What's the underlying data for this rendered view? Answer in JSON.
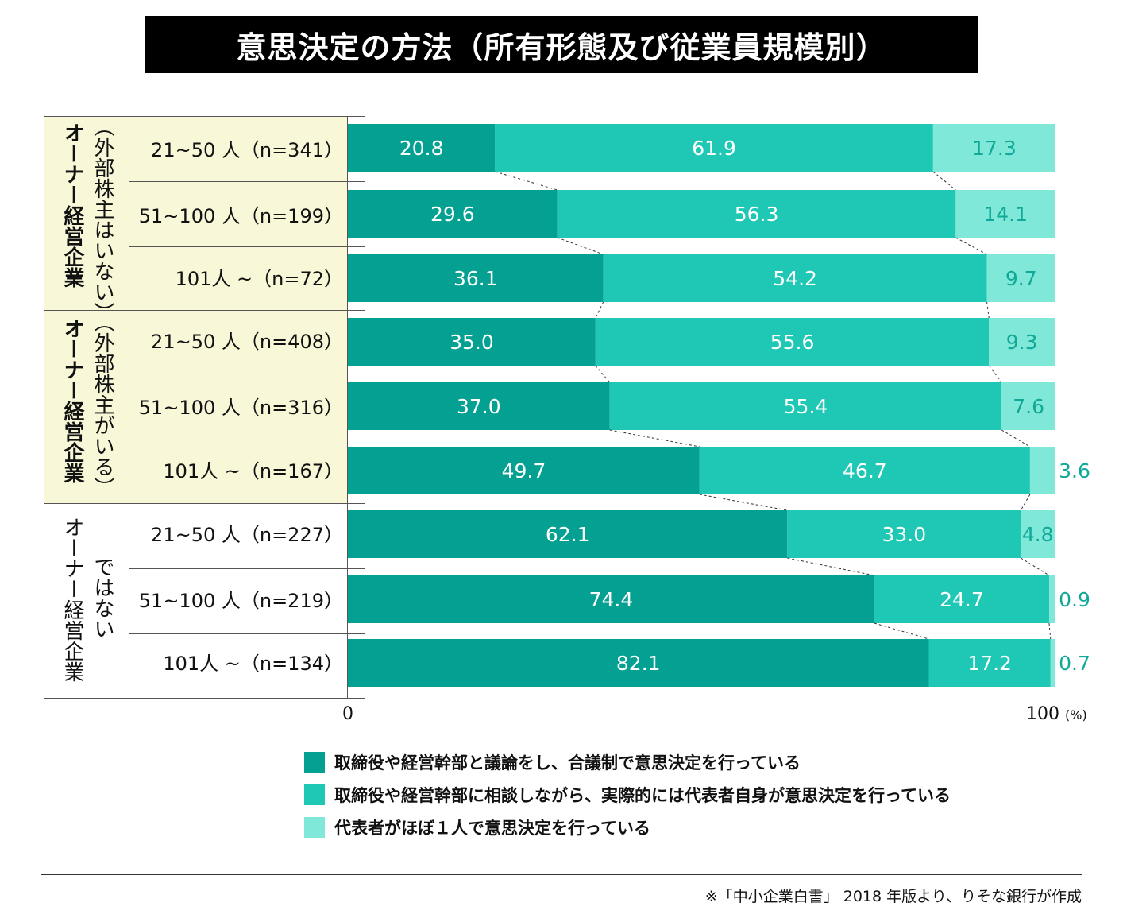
{
  "title": "意思決定の方法（所有形態及び従業員規模別）",
  "colors": {
    "series1": "#04a091",
    "series2": "#1ec8b4",
    "series3": "#80e8d8",
    "group_bg": "#f8f7d7"
  },
  "groups": [
    {
      "label": "オーナー経営企業",
      "sublabel": "（外部株主はいない）"
    },
    {
      "label": "オーナー経営企業",
      "sublabel": "（外部株主がいる）"
    },
    {
      "label": "オーナー経営企業",
      "sublabel": "ではない"
    }
  ],
  "chart_data": {
    "type": "bar",
    "stacked": true,
    "orientation": "horizontal",
    "categories": [
      "21~50 人（n=341）",
      "51~100 人（n=199）",
      "101人 ~（n=72）",
      "21~50 人（n=408）",
      "51~100 人（n=316）",
      "101人 ~（n=167）",
      "21~50 人（n=227）",
      "51~100 人（n=219）",
      "101人 ~（n=134）"
    ],
    "series": [
      {
        "name": "取締役や経営幹部と議論をし、合議制で意思決定を行っている",
        "values": [
          20.8,
          29.6,
          36.1,
          35.0,
          37.0,
          49.7,
          62.1,
          74.4,
          82.1
        ],
        "labels": [
          "20.8",
          "29.6",
          "36.1",
          "35.0",
          "37.0",
          "49.7",
          "62.1",
          "74.4",
          "82.1"
        ]
      },
      {
        "name": "取締役や経営幹部に相談しながら、実際的には代表者自身が意思決定を行っている",
        "values": [
          61.9,
          56.3,
          54.2,
          55.6,
          55.4,
          46.7,
          33.0,
          24.7,
          17.2
        ],
        "labels": [
          "61.9",
          "56.3",
          "54.2",
          "55.6",
          "55.4",
          "46.7",
          "33.0",
          "24.7",
          "17.2"
        ]
      },
      {
        "name": "代表者がほぼ１人で意思決定を行っている",
        "values": [
          17.3,
          14.1,
          9.7,
          9.3,
          7.6,
          3.6,
          4.8,
          0.9,
          0.7
        ],
        "labels": [
          "17.3",
          "14.1",
          "9.7",
          "9.3",
          "7.6",
          "3.6",
          "4.8",
          "0.9",
          "0.7"
        ]
      }
    ],
    "xlim": [
      0,
      100
    ],
    "x_ticks": [
      "0",
      "100"
    ],
    "x_unit": "(%)"
  },
  "source": "※「中小企業白書」 2018 年版より、りそな銀行が作成"
}
